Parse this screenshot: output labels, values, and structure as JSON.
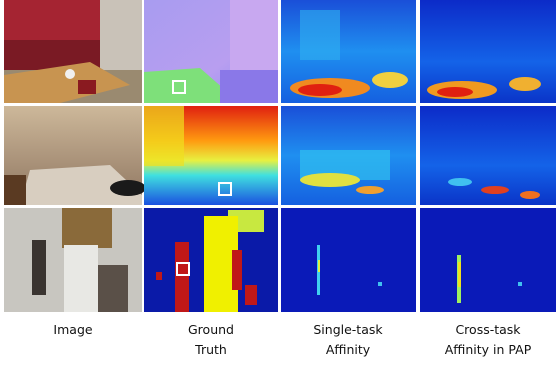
{
  "columns": [
    {
      "label_lines": [
        "Image"
      ]
    },
    {
      "label_lines": [
        "Ground",
        "Truth"
      ]
    },
    {
      "label_lines": [
        "Single-task",
        "Affinity"
      ]
    },
    {
      "label_lines": [
        "Cross-task",
        "Affinity in PAP"
      ]
    }
  ]
}
